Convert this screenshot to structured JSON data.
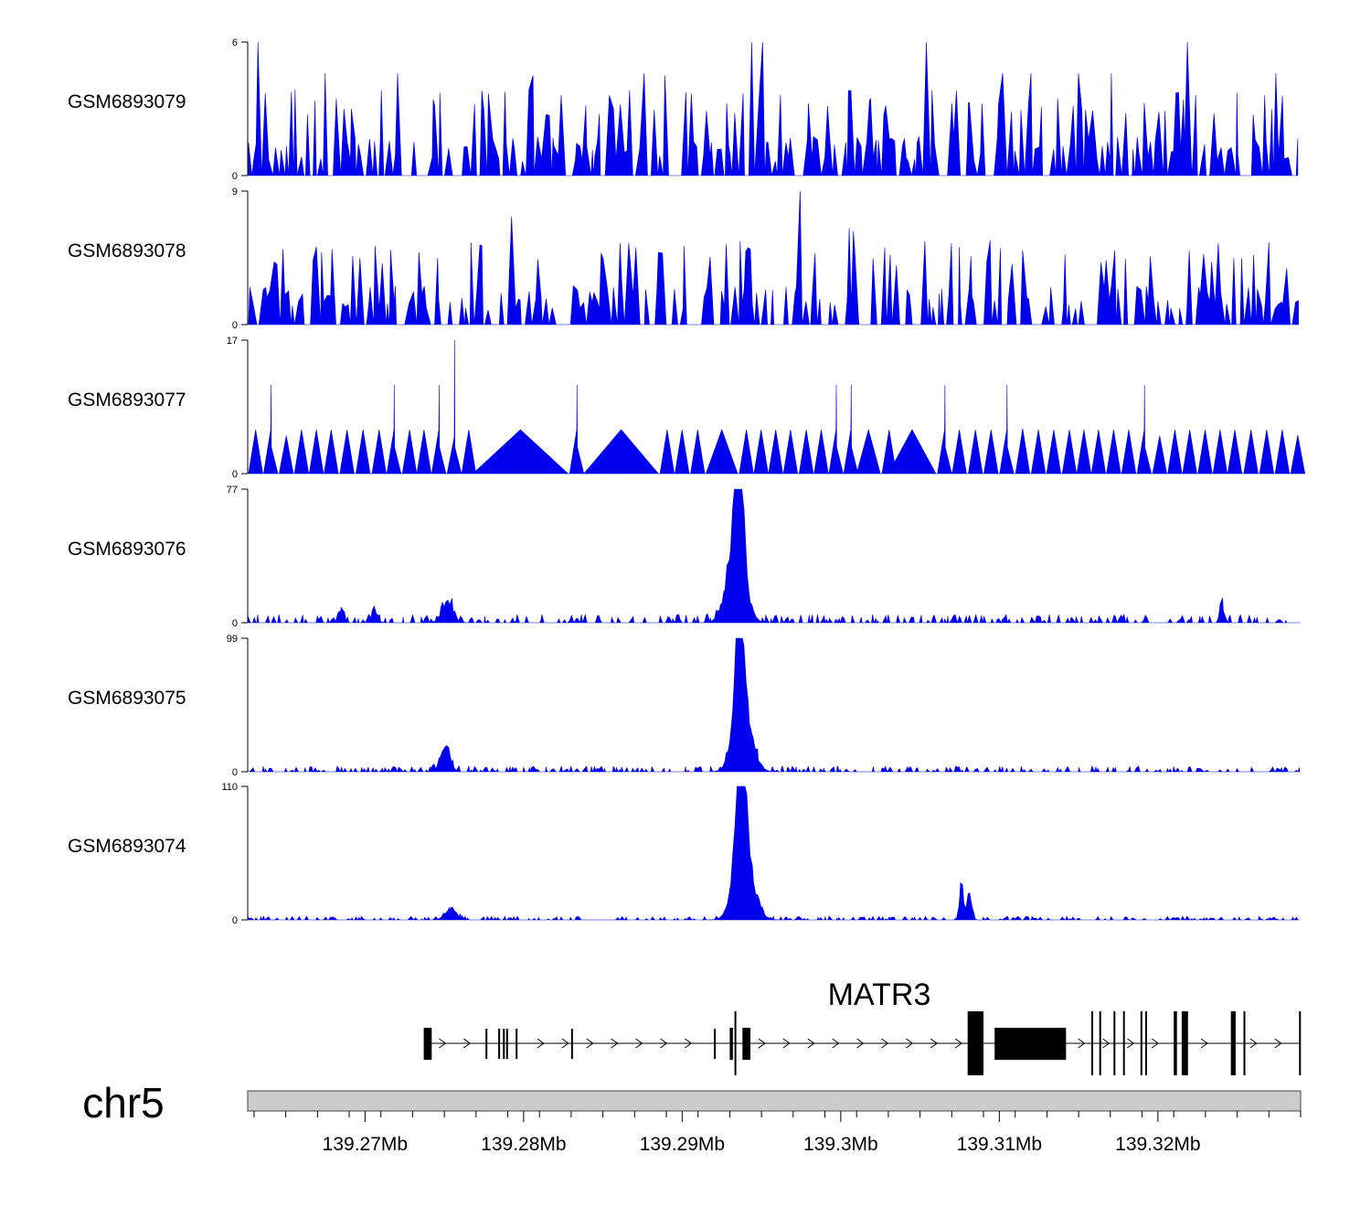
{
  "chart_data": {
    "type": "area",
    "title": "",
    "xlabel": "",
    "ylabel": "",
    "chromosome": "chr5",
    "xlim_mb": [
      139.2626,
      139.329
    ],
    "x_ticks": [
      {
        "value": 139.27,
        "label": "139.27Mb"
      },
      {
        "value": 139.28,
        "label": "139.28Mb"
      },
      {
        "value": 139.29,
        "label": "139.29Mb"
      },
      {
        "value": 139.3,
        "label": "139.3Mb"
      },
      {
        "value": 139.31,
        "label": "139.31Mb"
      },
      {
        "value": 139.32,
        "label": "139.32Mb"
      }
    ],
    "series_color": "#0000ee",
    "tracks": [
      {
        "name": "GSM6893079",
        "ymax": 6,
        "ymin_label": "0",
        "ymax_label": "6",
        "profile": "noise",
        "noise_level": 1.6,
        "spike_freq": 0.18,
        "peaks": [
          [
            139.2632,
            6.0
          ],
          [
            139.2675,
            4.6
          ],
          [
            139.272,
            4.6
          ],
          [
            139.2805,
            4.5
          ],
          [
            139.2875,
            4.6
          ],
          [
            139.289,
            4.5
          ],
          [
            139.2943,
            6.0
          ],
          [
            139.295,
            6.0
          ],
          [
            139.3054,
            6.0
          ],
          [
            139.3102,
            4.6
          ],
          [
            139.312,
            4.6
          ],
          [
            139.315,
            4.6
          ],
          [
            139.3171,
            4.6
          ],
          [
            139.3218,
            6.0
          ],
          [
            139.3275,
            4.6
          ]
        ]
      },
      {
        "name": "GSM6893078",
        "ymax": 9,
        "ymin_label": "0",
        "ymax_label": "9",
        "profile": "noise",
        "noise_level": 2.4,
        "spike_freq": 0.18,
        "peaks": [
          [
            139.2673,
            4.9
          ],
          [
            139.2745,
            4.5
          ],
          [
            139.2793,
            7.3
          ],
          [
            139.286,
            5.5
          ],
          [
            139.2871,
            5.2
          ],
          [
            139.2975,
            9.0
          ],
          [
            139.3005,
            6.5
          ],
          [
            139.3008,
            6.3
          ],
          [
            139.3035,
            4.0
          ],
          [
            139.3115,
            5.0
          ],
          [
            139.3172,
            5.0
          ],
          [
            139.322,
            5.0
          ],
          [
            139.328,
            3.8
          ]
        ]
      },
      {
        "name": "GSM6893077",
        "ymax": 17,
        "ymin_label": "0",
        "ymax_label": "17",
        "profile": "sparse",
        "base_level": 5.6,
        "peaks": [
          [
            139.2644,
            11.3
          ],
          [
            139.272,
            11.3
          ],
          [
            139.2742,
            11.3
          ],
          [
            139.276,
            17.0
          ],
          [
            139.2831,
            11.3
          ],
          [
            139.3,
            11.3
          ],
          [
            139.301,
            11.3
          ],
          [
            139.3063,
            11.3
          ],
          [
            139.3107,
            11.3
          ],
          [
            139.3193,
            11.3
          ]
        ],
        "gaps": [
          [
            139.2768,
            139.2828
          ],
          [
            139.2838,
            139.2885
          ],
          [
            139.2915,
            139.2935
          ],
          [
            139.301,
            139.3025
          ],
          [
            139.303,
            139.306
          ]
        ]
      },
      {
        "name": "GSM6893076",
        "ymax": 77,
        "ymin_label": "0",
        "ymax_label": "77",
        "profile": "broad",
        "noise_level": 4.0,
        "peaks": [
          [
            139.2936,
            77,
            0.25
          ],
          [
            139.2934,
            50,
            0.55
          ],
          [
            139.2752,
            13,
            0.35
          ],
          [
            139.2706,
            6,
            0.2
          ],
          [
            139.324,
            18,
            0.1
          ],
          [
            139.2685,
            9,
            0.15
          ]
        ]
      },
      {
        "name": "GSM6893075",
        "ymax": 99,
        "ymin_label": "0",
        "ymax_label": "99",
        "profile": "broad",
        "noise_level": 3.5,
        "peaks": [
          [
            139.2936,
            99,
            0.22
          ],
          [
            139.2938,
            60,
            0.55
          ],
          [
            139.2752,
            15,
            0.25
          ],
          [
            139.2748,
            8,
            0.25
          ]
        ]
      },
      {
        "name": "GSM6893074",
        "ymax": 110,
        "ymin_label": "0",
        "ymax_label": "110",
        "profile": "broad",
        "noise_level": 2.5,
        "peaks": [
          [
            139.2937,
            110,
            0.3
          ],
          [
            139.2939,
            55,
            0.6
          ],
          [
            139.3076,
            33,
            0.12
          ],
          [
            139.3081,
            22,
            0.15
          ],
          [
            139.2754,
            10,
            0.35
          ]
        ]
      }
    ]
  },
  "gene": {
    "name": "MATR3",
    "strand": "+",
    "start_mb": 139.2737,
    "end_mb": 139.329,
    "exons": [
      [
        139.2737,
        139.2742,
        "tall"
      ],
      [
        139.2776,
        139.2777,
        "thin"
      ],
      [
        139.2784,
        139.2785,
        "thin"
      ],
      [
        139.2787,
        139.2788,
        "thin"
      ],
      [
        139.2789,
        139.279,
        "thin"
      ],
      [
        139.2795,
        139.2796,
        "thin"
      ],
      [
        139.283,
        139.2831,
        "thin"
      ],
      [
        139.292,
        139.2921,
        "thin"
      ],
      [
        139.293,
        139.2932,
        "tall"
      ],
      [
        139.2933,
        139.2934,
        "xtall"
      ],
      [
        139.2938,
        139.2943,
        "tall"
      ],
      [
        139.308,
        139.309,
        "xtall"
      ],
      [
        139.3097,
        139.3142,
        "tall"
      ],
      [
        139.3158,
        139.3159,
        "xtall"
      ],
      [
        139.3163,
        139.3164,
        "xtall"
      ],
      [
        139.3172,
        139.3173,
        "xtall"
      ],
      [
        139.3178,
        139.3179,
        "xtall"
      ],
      [
        139.3189,
        139.319,
        "xtall"
      ],
      [
        139.3192,
        139.3193,
        "xtall"
      ],
      [
        139.321,
        139.3212,
        "xtall"
      ],
      [
        139.3215,
        139.3219,
        "xtall"
      ],
      [
        139.3246,
        139.3249,
        "xtall"
      ],
      [
        139.3254,
        139.3255,
        "xtall"
      ],
      [
        139.3289,
        139.329,
        "xtall"
      ]
    ]
  }
}
